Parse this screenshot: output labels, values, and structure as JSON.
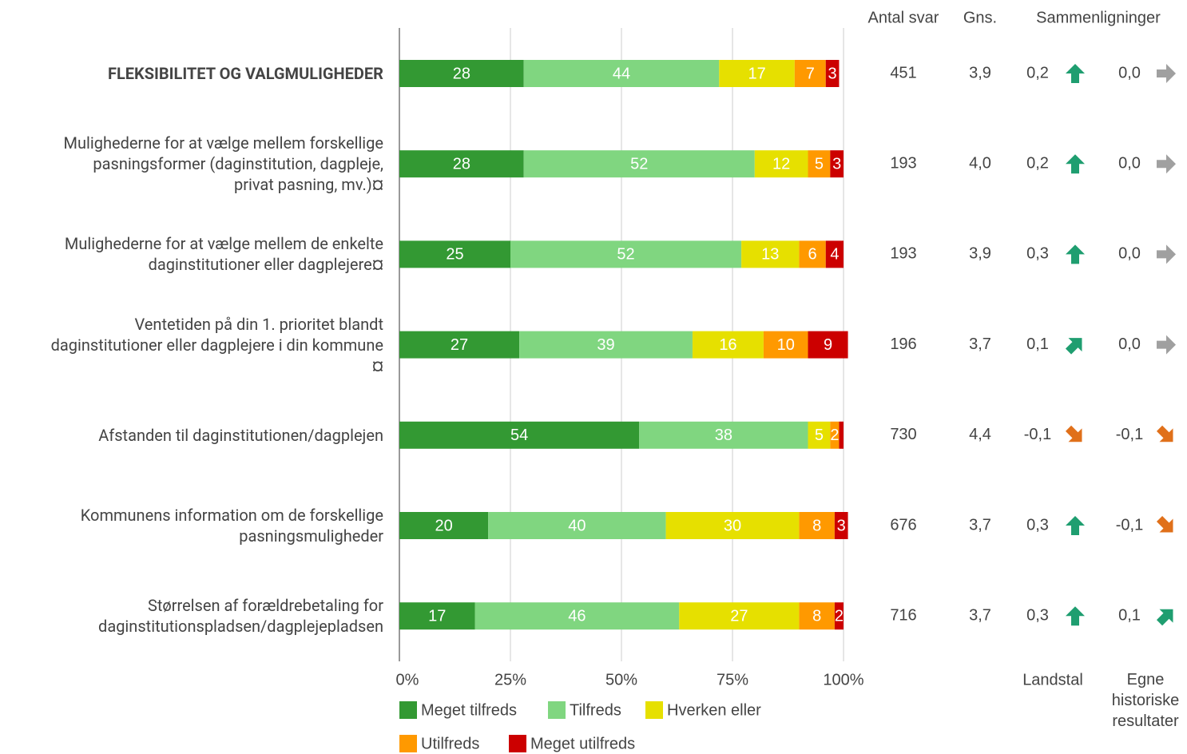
{
  "chart_data": {
    "type": "stacked_barh",
    "categories": [
      "FLEKSIBILITET OG VALGMULIGHEDER",
      "Mulighederne for at vælge mellem forskellige\npasningsformer (daginstitution, dagpleje,\nprivat pasning, mv.)¤",
      "Mulighederne for at vælge mellem de enkelte\ndaginstitutioner eller dagplejere¤",
      "Ventetiden på din 1. prioritet blandt\ndaginstitutioner eller dagplejere i din kommune\n¤",
      "Afstanden til daginstitutionen/dagplejen",
      "Kommunens information om de forskellige\npasningsmuligheder",
      "Størrelsen af forældrebetaling for\ndaginstitutionspladsen/dagplejepladsen"
    ],
    "series": [
      {
        "name": "Meget tilfreds",
        "color": "#339933",
        "values": [
          28,
          28,
          25,
          27,
          54,
          20,
          17
        ]
      },
      {
        "name": "Tilfreds",
        "color": "#80d680",
        "values": [
          44,
          52,
          52,
          39,
          38,
          40,
          46
        ]
      },
      {
        "name": "Hverken eller",
        "color": "#e6e000",
        "values": [
          17,
          12,
          13,
          16,
          5,
          30,
          27
        ]
      },
      {
        "name": "Utilfreds",
        "color": "#ff9900",
        "values": [
          7,
          5,
          6,
          10,
          2,
          8,
          8
        ]
      },
      {
        "name": "Meget utilfreds",
        "color": "#cc0000",
        "values": [
          3,
          3,
          4,
          9,
          1,
          3,
          2
        ],
        "value_labels": [
          "3",
          "3",
          "4",
          "9",
          null,
          "3",
          "2"
        ]
      }
    ],
    "xlim": [
      0,
      100
    ],
    "xticks": [
      {
        "value": 0,
        "label": "0%"
      },
      {
        "value": 25,
        "label": "25%"
      },
      {
        "value": 50,
        "label": "50%"
      },
      {
        "value": 75,
        "label": "75%"
      },
      {
        "value": 100,
        "label": "100%"
      }
    ],
    "grid": true,
    "columns": {
      "antal_header": "Antal svar",
      "gns_header": "Gns.",
      "comparison_header": "Sammenligninger",
      "landstal_label": "Landstal",
      "egne_label": "Egne\nhistoriske\nresultater",
      "antal": [
        "451",
        "193",
        "193",
        "196",
        "730",
        "676",
        "716"
      ],
      "gns": [
        "3,9",
        "4,0",
        "3,9",
        "3,7",
        "4,4",
        "3,7",
        "3,7"
      ],
      "landstal": [
        {
          "value": "0,2",
          "arrow": "up"
        },
        {
          "value": "0,2",
          "arrow": "up"
        },
        {
          "value": "0,3",
          "arrow": "up"
        },
        {
          "value": "0,1",
          "arrow": "up-right"
        },
        {
          "value": "-0,1",
          "arrow": "down-right"
        },
        {
          "value": "0,3",
          "arrow": "up"
        },
        {
          "value": "0,3",
          "arrow": "up"
        }
      ],
      "egne": [
        {
          "value": "0,0",
          "arrow": "right"
        },
        {
          "value": "0,0",
          "arrow": "right"
        },
        {
          "value": "0,0",
          "arrow": "right"
        },
        {
          "value": "0,0",
          "arrow": "right"
        },
        {
          "value": "-0,1",
          "arrow": "down-right"
        },
        {
          "value": "-0,1",
          "arrow": "down-right"
        },
        {
          "value": "0,1",
          "arrow": "up-right"
        }
      ],
      "arrow_colors": {
        "up": "#1f9e70",
        "up-right": "#1f9e70",
        "right": "#a0a0a0",
        "down-right": "#e0701a"
      }
    }
  }
}
